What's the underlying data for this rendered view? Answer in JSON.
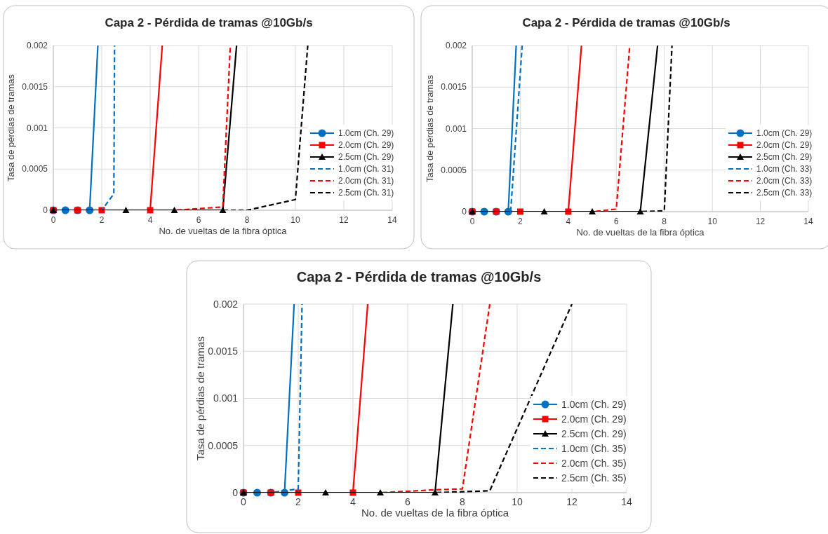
{
  "chart_data": [
    {
      "type": "line",
      "title": "Capa 2 - Pérdida de tramas @10Gb/s",
      "xlabel": "No. de vueltas de la fibra óptica",
      "ylabel": "Tasa de pérdias de tramas",
      "xlim": [
        0,
        14
      ],
      "xticks": [
        0,
        2,
        4,
        6,
        8,
        10,
        12,
        14
      ],
      "ylim": [
        0,
        0.002
      ],
      "yticks": [
        0,
        0.0005,
        0.001,
        0.0015,
        0.002
      ],
      "grid": true,
      "legend": "right",
      "series": [
        {
          "name": "1.0cm (Ch. 29)",
          "color": "#0070c0",
          "marker": "circle",
          "line_style": "solid",
          "x": [
            0,
            0.5,
            1,
            1.5,
            1.84
          ],
          "values": [
            0,
            0,
            0,
            0,
            0.002
          ]
        },
        {
          "name": "2.0cm (Ch. 29)",
          "color": "#ff0000",
          "marker": "square",
          "line_style": "solid",
          "x": [
            0,
            1,
            2,
            4,
            4.5
          ],
          "values": [
            0,
            0,
            0,
            0,
            0.002
          ]
        },
        {
          "name": "2.5cm (Ch. 29)",
          "color": "#000000",
          "marker": "triangle",
          "line_style": "solid",
          "x": [
            0,
            3,
            5,
            7,
            7.57
          ],
          "values": [
            0,
            0,
            0,
            0,
            0.002
          ]
        },
        {
          "name": "1.0cm (Ch. 31)",
          "color": "#0070c0",
          "marker": "none",
          "line_style": "dashed",
          "x": [
            0,
            1,
            2,
            2.5,
            2.53
          ],
          "values": [
            0,
            0,
            0,
            0.0002,
            0.002
          ]
        },
        {
          "name": "2.0cm (Ch. 31)",
          "color": "#ff0000",
          "marker": "none",
          "line_style": "dashed",
          "x": [
            0,
            2,
            4,
            5,
            7,
            7.31
          ],
          "values": [
            0,
            0,
            0,
            0,
            4e-05,
            0.002
          ]
        },
        {
          "name": "2.5cm (Ch. 31)",
          "color": "#000000",
          "marker": "none",
          "line_style": "dashed",
          "x": [
            0,
            3,
            5,
            7,
            8,
            10,
            10.51
          ],
          "values": [
            0,
            0,
            0,
            0,
            0,
            0.00013,
            0.002
          ]
        }
      ]
    },
    {
      "type": "line",
      "title": "Capa 2 - Pérdida de tramas @10Gb/s",
      "xlabel": "No. de vueltas de la fibra óptica",
      "ylabel": "Tasa de pérdias de tramas",
      "xlim": [
        0,
        14
      ],
      "xticks": [
        0,
        2,
        4,
        6,
        8,
        10,
        12,
        14
      ],
      "ylim": [
        0,
        0.002
      ],
      "yticks": [
        0,
        0.0005,
        0.001,
        0.0015,
        0.002
      ],
      "grid": true,
      "legend": "right",
      "series": [
        {
          "name": "1.0cm (Ch. 29)",
          "color": "#0070c0",
          "marker": "circle",
          "line_style": "solid",
          "x": [
            0,
            0.5,
            1,
            1.5,
            1.83
          ],
          "values": [
            0,
            0,
            0,
            0,
            0.002
          ]
        },
        {
          "name": "2.0cm (Ch. 29)",
          "color": "#ff0000",
          "marker": "square",
          "line_style": "solid",
          "x": [
            0,
            1,
            2,
            4,
            4.55
          ],
          "values": [
            0,
            0,
            0,
            0,
            0.002
          ]
        },
        {
          "name": "2.5cm (Ch. 29)",
          "color": "#000000",
          "marker": "triangle",
          "line_style": "solid",
          "x": [
            0,
            3,
            5,
            7,
            7.72
          ],
          "values": [
            0,
            0,
            0,
            0,
            0.002
          ]
        },
        {
          "name": "1.0cm (Ch. 33)",
          "color": "#0070c0",
          "marker": "none",
          "line_style": "dashed",
          "x": [
            0,
            1,
            1.6,
            2.08
          ],
          "values": [
            0,
            0,
            0,
            0.002
          ]
        },
        {
          "name": "2.0cm (Ch. 33)",
          "color": "#ff0000",
          "marker": "none",
          "line_style": "dashed",
          "x": [
            0,
            2,
            4,
            5,
            6,
            6.56
          ],
          "values": [
            0,
            0,
            0,
            0,
            3e-05,
            0.002
          ]
        },
        {
          "name": "2.5cm (Ch. 33)",
          "color": "#000000",
          "marker": "none",
          "line_style": "dashed",
          "x": [
            0,
            3,
            5,
            7,
            8,
            8.32
          ],
          "values": [
            0,
            0,
            0,
            0,
            1e-05,
            0.002
          ]
        }
      ]
    },
    {
      "type": "line",
      "title": "Capa 2 - Pérdida de tramas @10Gb/s",
      "xlabel": "No. de vueltas de la fibra óptica",
      "ylabel": "Tasa de pérdias de tramas",
      "xlim": [
        0,
        14
      ],
      "xticks": [
        0,
        2,
        4,
        6,
        8,
        10,
        12,
        14
      ],
      "ylim": [
        0,
        0.002
      ],
      "yticks": [
        0,
        0.0005,
        0.001,
        0.0015,
        0.002
      ],
      "grid": true,
      "legend": "right",
      "series": [
        {
          "name": "1.0cm (Ch. 29)",
          "color": "#0070c0",
          "marker": "circle",
          "line_style": "solid",
          "x": [
            0,
            0.5,
            1,
            1.5,
            1.85
          ],
          "values": [
            0,
            0,
            0,
            0,
            0.002
          ]
        },
        {
          "name": "2.0cm (Ch. 29)",
          "color": "#ff0000",
          "marker": "square",
          "line_style": "solid",
          "x": [
            0,
            1,
            2,
            4,
            4.54
          ],
          "values": [
            0,
            0,
            0,
            0,
            0.002
          ]
        },
        {
          "name": "2.5cm (Ch. 29)",
          "color": "#000000",
          "marker": "triangle",
          "line_style": "solid",
          "x": [
            0,
            3,
            5,
            7,
            7.65
          ],
          "values": [
            0,
            0,
            0,
            0,
            0.002
          ]
        },
        {
          "name": "1.0cm (Ch. 35)",
          "color": "#0070c0",
          "marker": "none",
          "line_style": "dashed",
          "x": [
            0,
            1,
            2,
            2.14
          ],
          "values": [
            0,
            0,
            4e-05,
            0.002
          ]
        },
        {
          "name": "2.0cm (Ch. 35)",
          "color": "#ff0000",
          "marker": "none",
          "line_style": "dashed",
          "x": [
            0,
            2,
            4,
            5,
            7,
            8,
            9
          ],
          "values": [
            0,
            0,
            0,
            0,
            3e-05,
            4e-05,
            0.002
          ]
        },
        {
          "name": "2.5cm (Ch. 35)",
          "color": "#000000",
          "marker": "none",
          "line_style": "dashed",
          "x": [
            0,
            3,
            5,
            7,
            9,
            12
          ],
          "values": [
            0,
            0,
            0,
            0,
            2e-05,
            0.002
          ]
        }
      ]
    }
  ]
}
